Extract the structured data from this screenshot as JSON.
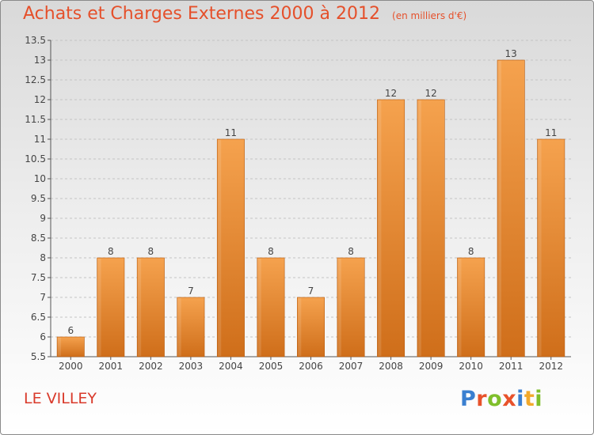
{
  "header": {
    "title": "Achats et Charges Externes 2000 à 2012",
    "unit": "(en milliers d'€)"
  },
  "footer": {
    "commune": "LE VILLEY",
    "logo": "Proxiti"
  },
  "colors": {
    "title": "#e5502b",
    "bar_top": "#f5a24e",
    "bar_bottom": "#cf6e1a",
    "bar_border": "#b85d12",
    "commune": "#d93a2b",
    "logo_letters": [
      "#3a7fd0",
      "#e8522b",
      "#7fbf2b",
      "#e8522b",
      "#3a7fd0",
      "#f2a92b",
      "#7fbf2b"
    ]
  },
  "chart_data": {
    "type": "bar",
    "title": "Achats et Charges Externes 2000 à 2012",
    "subtitle": "(en milliers d'€)",
    "xlabel": "",
    "ylabel": "",
    "categories": [
      "2000",
      "2001",
      "2002",
      "2003",
      "2004",
      "2005",
      "2006",
      "2007",
      "2008",
      "2009",
      "2010",
      "2011",
      "2012"
    ],
    "values": [
      6,
      8,
      8,
      7,
      11,
      8,
      7,
      8,
      12,
      12,
      8,
      13,
      11
    ],
    "data_labels": [
      "6",
      "8",
      "8",
      "7",
      "11",
      "8",
      "7",
      "8",
      "12",
      "12",
      "8",
      "13",
      "11"
    ],
    "ylim": [
      5.5,
      13.5
    ],
    "yticks": [
      "5.5",
      "6",
      "6.5",
      "7",
      "7.5",
      "8",
      "8.5",
      "9",
      "9.5",
      "10",
      "10.5",
      "11",
      "11.5",
      "12",
      "12.5",
      "13",
      "13.5"
    ],
    "grid": "horizontal dashed",
    "legend": "none"
  }
}
